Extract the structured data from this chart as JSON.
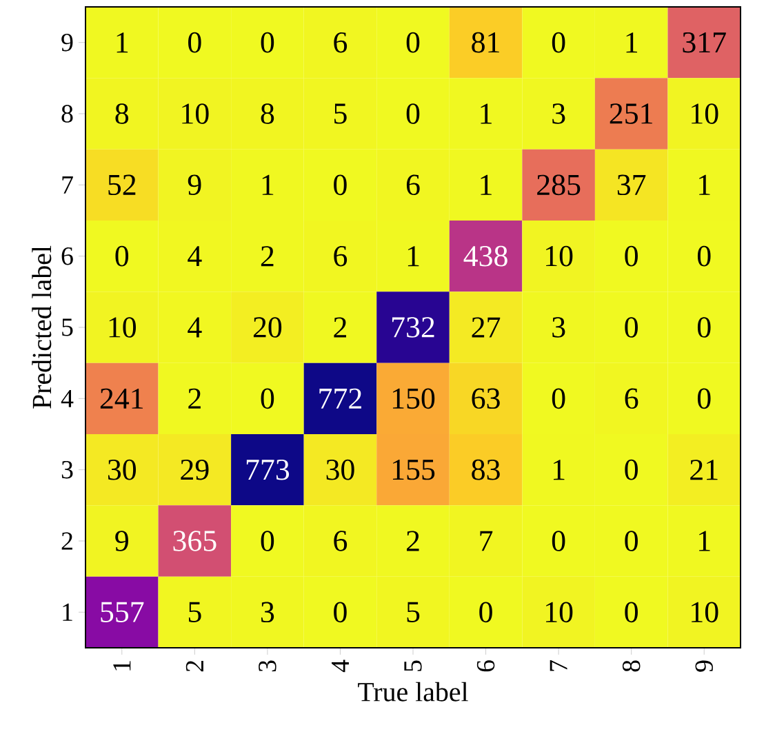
{
  "chart_data": {
    "type": "heatmap",
    "xlabel": "True label",
    "ylabel": "Predicted label",
    "data_labels": true,
    "categories": [
      "1",
      "2",
      "3",
      "4",
      "5",
      "6",
      "7",
      "8",
      "9"
    ],
    "y_categories": [
      "9",
      "8",
      "7",
      "6",
      "5",
      "4",
      "3",
      "2",
      "1"
    ],
    "cells": [
      [
        1,
        0,
        0,
        6,
        0,
        81,
        0,
        1,
        317
      ],
      [
        8,
        10,
        8,
        5,
        0,
        1,
        3,
        251,
        10
      ],
      [
        52,
        9,
        1,
        0,
        6,
        1,
        285,
        37,
        1
      ],
      [
        0,
        4,
        2,
        6,
        1,
        438,
        10,
        0,
        0
      ],
      [
        10,
        4,
        20,
        2,
        732,
        27,
        3,
        0,
        0
      ],
      [
        241,
        2,
        0,
        772,
        150,
        63,
        0,
        6,
        0
      ],
      [
        30,
        29,
        773,
        30,
        155,
        83,
        1,
        0,
        21
      ],
      [
        9,
        365,
        0,
        6,
        2,
        7,
        0,
        0,
        1
      ],
      [
        557,
        5,
        3,
        0,
        5,
        0,
        10,
        0,
        10
      ]
    ]
  }
}
